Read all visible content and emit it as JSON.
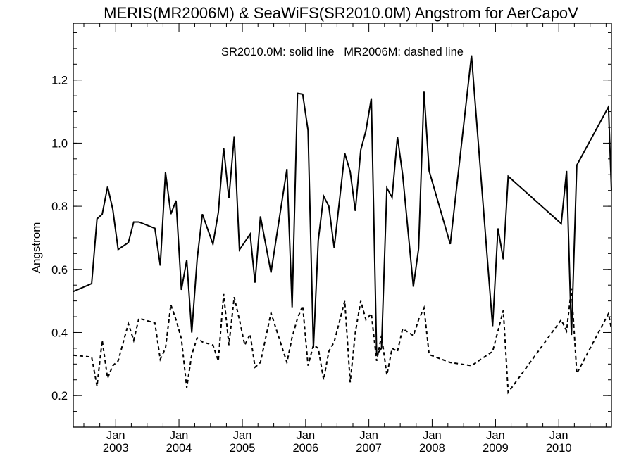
{
  "chart_data": {
    "type": "line",
    "title": "MERIS(MR2006M) & SeaWiFS(SR2010.0M)  Angstrom for AerCapoV",
    "annotation": "SR2010.0M: solid line   MR2006M: dashed line",
    "ylabel": "Angstrom",
    "xlabel": "",
    "xlim": [
      "2002-05-01",
      "2010-11-01"
    ],
    "ylim": [
      0.1,
      1.38
    ],
    "y_ticks": [
      0.2,
      0.4,
      0.6,
      0.8,
      1.0,
      1.2
    ],
    "y_tick_labels": [
      "0.2",
      "0.4",
      "0.6",
      "0.8",
      "1.0",
      "1.2"
    ],
    "x_ticks": [
      {
        "date": "2003-01-01",
        "month": "Jan",
        "year": "2003"
      },
      {
        "date": "2004-01-01",
        "month": "Jan",
        "year": "2004"
      },
      {
        "date": "2005-01-01",
        "month": "Jan",
        "year": "2005"
      },
      {
        "date": "2006-01-01",
        "month": "Jan",
        "year": "2006"
      },
      {
        "date": "2007-01-01",
        "month": "Jan",
        "year": "2007"
      },
      {
        "date": "2008-01-01",
        "month": "Jan",
        "year": "2008"
      },
      {
        "date": "2009-01-01",
        "month": "Jan",
        "year": "2009"
      },
      {
        "date": "2010-01-01",
        "month": "Jan",
        "year": "2010"
      }
    ],
    "x_minor_ticks": [
      "2002-07-01",
      "2002-10-01",
      "2003-04-01",
      "2003-07-01",
      "2003-10-01",
      "2004-04-01",
      "2004-07-01",
      "2004-10-01",
      "2005-04-01",
      "2005-07-01",
      "2005-10-01",
      "2006-04-01",
      "2006-07-01",
      "2006-10-01",
      "2007-04-01",
      "2007-07-01",
      "2007-10-01",
      "2008-04-01",
      "2008-07-01",
      "2008-10-01",
      "2009-04-01",
      "2009-07-01",
      "2009-10-01",
      "2010-04-01",
      "2010-07-01",
      "2010-10-01"
    ],
    "y_minor_step": 0.05,
    "grid": false,
    "series": [
      {
        "line_style": "solid",
        "color": "#000000",
        "points": [
          [
            "2002-05-01",
            0.53
          ],
          [
            "2002-08-15",
            0.555
          ],
          [
            "2002-09-15",
            0.76
          ],
          [
            "2002-10-15",
            0.775
          ],
          [
            "2002-11-15",
            0.862
          ],
          [
            "2002-12-15",
            0.79
          ],
          [
            "2003-01-15",
            0.663
          ],
          [
            "2003-03-15",
            0.685
          ],
          [
            "2003-04-15",
            0.75
          ],
          [
            "2003-05-15",
            0.75
          ],
          [
            "2003-08-15",
            0.73
          ],
          [
            "2003-09-15",
            0.612
          ],
          [
            "2003-10-15",
            0.908
          ],
          [
            "2003-11-15",
            0.775
          ],
          [
            "2003-12-15",
            0.818
          ],
          [
            "2004-01-15",
            0.535
          ],
          [
            "2004-02-15",
            0.63
          ],
          [
            "2004-03-15",
            0.4
          ],
          [
            "2004-04-15",
            0.633
          ],
          [
            "2004-05-15",
            0.775
          ],
          [
            "2004-07-15",
            0.68
          ],
          [
            "2004-08-15",
            0.78
          ],
          [
            "2004-09-15",
            0.985
          ],
          [
            "2004-10-15",
            0.825
          ],
          [
            "2004-11-15",
            1.022
          ],
          [
            "2004-12-15",
            0.662
          ],
          [
            "2005-02-15",
            0.712
          ],
          [
            "2005-03-15",
            0.558
          ],
          [
            "2005-04-15",
            0.768
          ],
          [
            "2005-06-15",
            0.59
          ],
          [
            "2005-09-15",
            0.918
          ],
          [
            "2005-10-15",
            0.48
          ],
          [
            "2005-11-15",
            1.158
          ],
          [
            "2005-12-15",
            1.155
          ],
          [
            "2006-01-15",
            1.04
          ],
          [
            "2006-02-15",
            0.35
          ],
          [
            "2006-03-15",
            0.692
          ],
          [
            "2006-04-15",
            0.832
          ],
          [
            "2006-05-15",
            0.8
          ],
          [
            "2006-06-15",
            0.668
          ],
          [
            "2006-08-15",
            0.968
          ],
          [
            "2006-09-15",
            0.91
          ],
          [
            "2006-10-15",
            0.785
          ],
          [
            "2006-11-15",
            0.978
          ],
          [
            "2006-12-15",
            1.04
          ],
          [
            "2007-01-15",
            1.142
          ],
          [
            "2007-02-15",
            0.33
          ],
          [
            "2007-03-15",
            0.35
          ],
          [
            "2007-04-15",
            0.858
          ],
          [
            "2007-05-15",
            0.828
          ],
          [
            "2007-06-15",
            1.02
          ],
          [
            "2007-07-15",
            0.9
          ],
          [
            "2007-09-15",
            0.545
          ],
          [
            "2007-10-15",
            0.665
          ],
          [
            "2007-11-15",
            1.163
          ],
          [
            "2007-12-15",
            0.912
          ],
          [
            "2008-04-15",
            0.68
          ],
          [
            "2008-08-15",
            1.278
          ],
          [
            "2008-12-15",
            0.42
          ],
          [
            "2009-01-15",
            0.73
          ],
          [
            "2009-02-15",
            0.632
          ],
          [
            "2009-03-15",
            0.895
          ],
          [
            "2010-01-15",
            0.745
          ],
          [
            "2010-02-15",
            0.912
          ],
          [
            "2010-03-15",
            0.392
          ],
          [
            "2010-04-15",
            0.93
          ],
          [
            "2010-10-15",
            1.115
          ],
          [
            "2010-11-01",
            0.85
          ]
        ]
      },
      {
        "line_style": "dashed",
        "color": "#000000",
        "points": [
          [
            "2002-05-01",
            0.328
          ],
          [
            "2002-08-15",
            0.322
          ],
          [
            "2002-09-15",
            0.23
          ],
          [
            "2002-10-15",
            0.375
          ],
          [
            "2002-11-15",
            0.255
          ],
          [
            "2002-12-15",
            0.295
          ],
          [
            "2003-01-15",
            0.31
          ],
          [
            "2003-03-15",
            0.428
          ],
          [
            "2003-04-15",
            0.375
          ],
          [
            "2003-05-15",
            0.445
          ],
          [
            "2003-08-15",
            0.43
          ],
          [
            "2003-09-15",
            0.315
          ],
          [
            "2003-10-15",
            0.35
          ],
          [
            "2003-11-15",
            0.488
          ],
          [
            "2003-12-15",
            0.44
          ],
          [
            "2004-01-15",
            0.38
          ],
          [
            "2004-02-15",
            0.225
          ],
          [
            "2004-03-15",
            0.33
          ],
          [
            "2004-04-15",
            0.383
          ],
          [
            "2004-05-15",
            0.37
          ],
          [
            "2004-07-15",
            0.36
          ],
          [
            "2004-08-15",
            0.31
          ],
          [
            "2004-09-15",
            0.522
          ],
          [
            "2004-10-15",
            0.36
          ],
          [
            "2004-11-15",
            0.512
          ],
          [
            "2004-12-15",
            0.44
          ],
          [
            "2005-01-15",
            0.36
          ],
          [
            "2005-02-15",
            0.395
          ],
          [
            "2005-03-15",
            0.29
          ],
          [
            "2005-04-15",
            0.305
          ],
          [
            "2005-06-15",
            0.462
          ],
          [
            "2005-09-15",
            0.305
          ],
          [
            "2005-10-15",
            0.385
          ],
          [
            "2005-11-15",
            0.445
          ],
          [
            "2005-12-15",
            0.485
          ],
          [
            "2006-01-15",
            0.295
          ],
          [
            "2006-02-15",
            0.36
          ],
          [
            "2006-03-15",
            0.35
          ],
          [
            "2006-04-15",
            0.25
          ],
          [
            "2006-05-15",
            0.34
          ],
          [
            "2006-06-15",
            0.37
          ],
          [
            "2006-08-15",
            0.5
          ],
          [
            "2006-09-15",
            0.242
          ],
          [
            "2006-10-15",
            0.4
          ],
          [
            "2006-11-15",
            0.5
          ],
          [
            "2006-12-15",
            0.44
          ],
          [
            "2007-01-15",
            0.46
          ],
          [
            "2007-02-15",
            0.31
          ],
          [
            "2007-03-15",
            0.39
          ],
          [
            "2007-04-15",
            0.265
          ],
          [
            "2007-05-15",
            0.35
          ],
          [
            "2007-06-15",
            0.34
          ],
          [
            "2007-07-15",
            0.412
          ],
          [
            "2007-09-15",
            0.39
          ],
          [
            "2007-10-15",
            0.44
          ],
          [
            "2007-11-15",
            0.478
          ],
          [
            "2007-12-15",
            0.33
          ],
          [
            "2008-04-15",
            0.305
          ],
          [
            "2008-08-15",
            0.295
          ],
          [
            "2008-12-15",
            0.34
          ],
          [
            "2009-02-15",
            0.47
          ],
          [
            "2009-03-15",
            0.21
          ],
          [
            "2010-01-15",
            0.44
          ],
          [
            "2010-02-15",
            0.405
          ],
          [
            "2010-03-15",
            0.54
          ],
          [
            "2010-04-15",
            0.27
          ],
          [
            "2010-10-15",
            0.46
          ],
          [
            "2010-11-01",
            0.41
          ]
        ]
      }
    ]
  }
}
